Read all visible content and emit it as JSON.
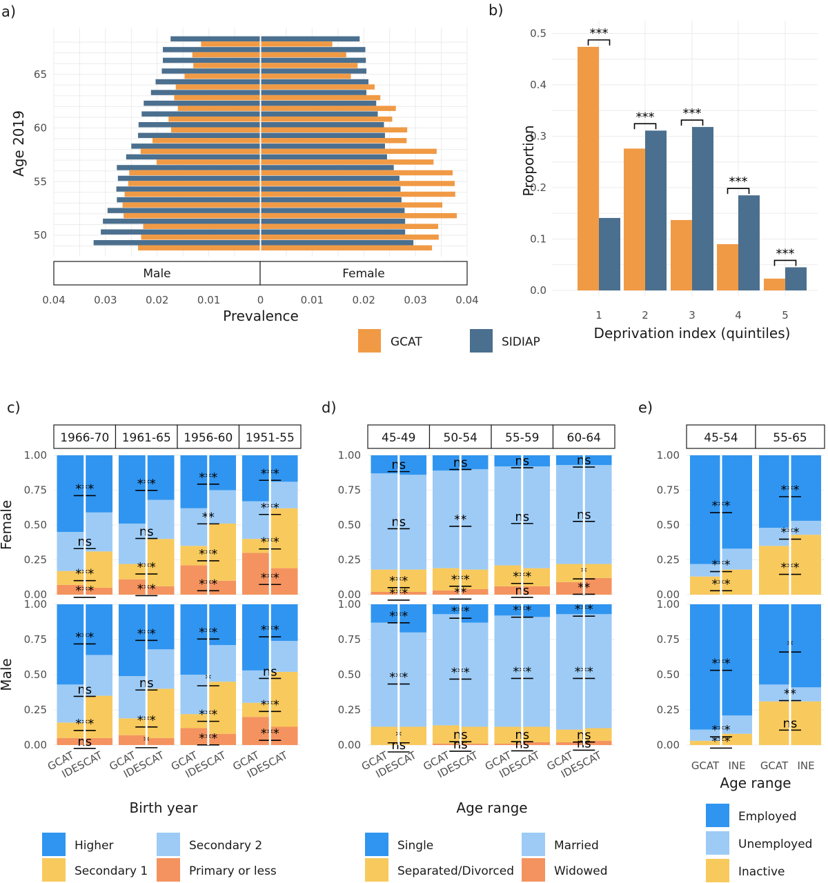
{
  "colors": {
    "gcat": "#F09A45",
    "sidiap": "#4B6F8E",
    "higher": "#3095F0",
    "secondary2": "#9DCBF6",
    "secondary1": "#F8C95C",
    "primary": "#F4935F",
    "employed": "#3095F0",
    "unemployed": "#9DCBF6",
    "inactive": "#F8C95C",
    "single": "#3095F0",
    "married": "#9DCBF6",
    "separated": "#F8C95C",
    "widowed": "#F4935F"
  },
  "panel_labels": [
    "a)",
    "b)",
    "c)",
    "d)",
    "e)"
  ],
  "legend_ab": [
    "GCAT",
    "SIDIAP"
  ],
  "chart_data": [
    {
      "panel": "a)",
      "type": "bar",
      "orientation": "horizontal",
      "xlabel": "Prevalence",
      "ylabel": "Age 2019",
      "xlim": [
        -0.04,
        0.04
      ],
      "x_ticks": [
        "0.04",
        "0.03",
        "0.02",
        "0.01",
        "0",
        "0.01",
        "0.02",
        "0.03",
        "0.04"
      ],
      "y_ticks": [
        "50",
        "55",
        "60",
        "65"
      ],
      "facets": [
        "Male",
        "Female"
      ],
      "ages": [
        49,
        50,
        51,
        52,
        53,
        54,
        55,
        56,
        57,
        58,
        59,
        60,
        61,
        62,
        63,
        64,
        65,
        66,
        67,
        68
      ],
      "series": [
        {
          "name": "GCAT",
          "male": [
            0.0237,
            0.0231,
            0.0227,
            0.0265,
            0.0267,
            0.0263,
            0.0256,
            0.0254,
            0.0201,
            0.0232,
            0.0209,
            0.0173,
            0.0178,
            0.016,
            0.0167,
            0.0164,
            0.0147,
            0.013,
            0.0132,
            0.0115
          ],
          "female": [
            0.0332,
            0.0345,
            0.0344,
            0.038,
            0.0352,
            0.0377,
            0.0376,
            0.0372,
            0.0335,
            0.0341,
            0.0283,
            0.0284,
            0.0255,
            0.0262,
            0.0232,
            0.0221,
            0.0175,
            0.0188,
            0.0166,
            0.0139
          ]
        },
        {
          "name": "SIDIAP",
          "male": [
            0.0323,
            0.0309,
            0.0305,
            0.0296,
            0.0278,
            0.0279,
            0.0276,
            0.0278,
            0.026,
            0.025,
            0.0237,
            0.0236,
            0.023,
            0.0226,
            0.0212,
            0.0203,
            0.0191,
            0.0189,
            0.0189,
            0.0174
          ],
          "female": [
            0.0296,
            0.028,
            0.028,
            0.0279,
            0.0273,
            0.0271,
            0.0269,
            0.0258,
            0.0245,
            0.0241,
            0.0241,
            0.0239,
            0.0227,
            0.0224,
            0.0205,
            0.0209,
            0.0205,
            0.0204,
            0.0203,
            0.0192
          ]
        }
      ]
    },
    {
      "panel": "b)",
      "type": "bar",
      "xlabel": "Deprivation index (quintiles)",
      "ylabel": "Proportion",
      "ylim": [
        0,
        0.5
      ],
      "categories": [
        "1",
        "2",
        "3",
        "4",
        "5"
      ],
      "y_ticks": [
        "0.0",
        "0.1",
        "0.2",
        "0.3",
        "0.4",
        "0.5"
      ],
      "series": [
        {
          "name": "GCAT",
          "values": [
            0.474,
            0.276,
            0.137,
            0.09,
            0.023
          ]
        },
        {
          "name": "SIDIAP",
          "values": [
            0.141,
            0.311,
            0.318,
            0.185,
            0.045
          ]
        }
      ],
      "annotations": [
        "***",
        "***",
        "***",
        "***",
        "***"
      ]
    },
    {
      "panel": "c)",
      "type": "bar",
      "stacked": true,
      "xlabel": "Birth year",
      "ylabel_rows": [
        "Female",
        "Male"
      ],
      "columns": [
        "1966-70",
        "1961-65",
        "1956-60",
        "1951-55"
      ],
      "categories": [
        "GCAT",
        "IDESCAT"
      ],
      "y_ticks": [
        "0.00",
        "0.25",
        "0.50",
        "0.75",
        "1.00"
      ],
      "legend": [
        "Higher",
        "Secondary 2",
        "Secondary 1",
        "Primary or less"
      ],
      "rows": [
        {
          "row": "Female",
          "bars": [
            {
              "GCAT": [
                0.07,
                0.1,
                0.28,
                0.55
              ],
              "IDESCAT": [
                0.05,
                0.26,
                0.28,
                0.41
              ]
            },
            {
              "GCAT": [
                0.11,
                0.11,
                0.29,
                0.49
              ],
              "IDESCAT": [
                0.06,
                0.34,
                0.28,
                0.32
              ]
            },
            {
              "GCAT": [
                0.21,
                0.14,
                0.27,
                0.38
              ],
              "IDESCAT": [
                0.1,
                0.41,
                0.24,
                0.25
              ]
            },
            {
              "GCAT": [
                0.3,
                0.1,
                0.27,
                0.33
              ],
              "IDESCAT": [
                0.19,
                0.43,
                0.19,
                0.19
              ]
            }
          ],
          "sig": [
            [
              "***",
              "***",
              "ns",
              "***"
            ],
            [
              "***",
              "***",
              "ns",
              "***"
            ],
            [
              "***",
              "***",
              "**",
              "***"
            ],
            [
              "***",
              "***",
              "***",
              "***"
            ]
          ]
        },
        {
          "row": "Male",
          "bars": [
            {
              "GCAT": [
                0.05,
                0.11,
                0.27,
                0.57
              ],
              "IDESCAT": [
                0.05,
                0.3,
                0.29,
                0.36
              ]
            },
            {
              "GCAT": [
                0.07,
                0.12,
                0.3,
                0.51
              ],
              "IDESCAT": [
                0.05,
                0.35,
                0.28,
                0.32
              ]
            },
            {
              "GCAT": [
                0.12,
                0.1,
                0.28,
                0.5
              ],
              "IDESCAT": [
                0.08,
                0.37,
                0.26,
                0.29
              ]
            },
            {
              "GCAT": [
                0.2,
                0.1,
                0.23,
                0.47
              ],
              "IDESCAT": [
                0.13,
                0.39,
                0.22,
                0.26
              ]
            }
          ],
          "sig": [
            [
              "ns",
              "***",
              "ns",
              "***"
            ],
            [
              "*",
              "***",
              "ns",
              "***"
            ],
            [
              "***",
              "***",
              "*",
              "***"
            ],
            [
              "***",
              "***",
              "ns",
              "***"
            ]
          ]
        }
      ]
    },
    {
      "panel": "d)",
      "type": "bar",
      "stacked": true,
      "xlabel": "Age range",
      "columns": [
        "45-49",
        "50-54",
        "55-59",
        "60-64"
      ],
      "categories": [
        "GCAT",
        "IDESCAT"
      ],
      "y_ticks": [
        "0.00",
        "0.25",
        "0.50",
        "0.75",
        "1.00"
      ],
      "legend": [
        "Single",
        "Married",
        "Separated/Divorced",
        "Widowed"
      ],
      "rows": [
        {
          "row": "Female",
          "bars": [
            {
              "GCAT": [
                0.02,
                0.16,
                0.69,
                0.13
              ],
              "IDESCAT": [
                0.02,
                0.16,
                0.68,
                0.14
              ]
            },
            {
              "GCAT": [
                0.03,
                0.16,
                0.7,
                0.11
              ],
              "IDESCAT": [
                0.04,
                0.14,
                0.72,
                0.1
              ]
            },
            {
              "GCAT": [
                0.06,
                0.15,
                0.71,
                0.08
              ],
              "IDESCAT": [
                0.06,
                0.13,
                0.73,
                0.08
              ]
            },
            {
              "GCAT": [
                0.09,
                0.13,
                0.71,
                0.07
              ],
              "IDESCAT": [
                0.12,
                0.1,
                0.71,
                0.07
              ]
            }
          ],
          "sig": [
            [
              "***",
              "***",
              "ns",
              "ns"
            ],
            [
              "**",
              "***",
              "**",
              "ns"
            ],
            [
              "ns",
              "***",
              "ns",
              "ns"
            ],
            [
              "**",
              "*",
              "ns",
              "ns"
            ]
          ]
        },
        {
          "row": "Male",
          "bars": [
            {
              "GCAT": [
                0.0,
                0.13,
                0.74,
                0.13
              ],
              "IDESCAT": [
                0.0,
                0.13,
                0.67,
                0.2
              ]
            },
            {
              "GCAT": [
                0.01,
                0.13,
                0.79,
                0.07
              ],
              "IDESCAT": [
                0.01,
                0.12,
                0.74,
                0.13
              ]
            },
            {
              "GCAT": [
                0.01,
                0.12,
                0.79,
                0.08
              ],
              "IDESCAT": [
                0.02,
                0.11,
                0.78,
                0.09
              ]
            },
            {
              "GCAT": [
                0.02,
                0.09,
                0.82,
                0.07
              ],
              "IDESCAT": [
                0.03,
                0.09,
                0.81,
                0.07
              ]
            }
          ],
          "sig": [
            [
              "ns",
              "*",
              "***",
              "***"
            ],
            [
              "ns",
              "ns",
              "***",
              "***"
            ],
            [
              "ns",
              "ns",
              "***",
              "***"
            ],
            [
              "ns",
              "ns",
              "***",
              "***"
            ]
          ]
        }
      ]
    },
    {
      "panel": "e)",
      "type": "bar",
      "stacked": true,
      "xlabel": "Age range",
      "columns": [
        "45-54",
        "55-65"
      ],
      "categories": [
        "GCAT",
        "INE"
      ],
      "y_ticks": [
        "0.00",
        "0.25",
        "0.50",
        "0.75",
        "1.00"
      ],
      "legend": [
        "Employed",
        "Unemployed",
        "Inactive"
      ],
      "rows": [
        {
          "row": "Female",
          "bars": [
            {
              "GCAT": [
                0.13,
                0.09,
                0.78
              ],
              "INE": [
                0.18,
                0.15,
                0.67
              ]
            },
            {
              "GCAT": [
                0.35,
                0.13,
                0.52
              ],
              "INE": [
                0.43,
                0.1,
                0.47
              ]
            }
          ],
          "sig": [
            [
              "***",
              "***",
              "***"
            ],
            [
              "***",
              "***",
              "***"
            ]
          ]
        },
        {
          "row": "Male",
          "bars": [
            {
              "GCAT": [
                0.03,
                0.08,
                0.89
              ],
              "INE": [
                0.08,
                0.13,
                0.79
              ]
            },
            {
              "GCAT": [
                0.31,
                0.12,
                0.57
              ],
              "INE": [
                0.31,
                0.1,
                0.59
              ]
            }
          ],
          "sig": [
            [
              "***",
              "***",
              "***"
            ],
            [
              "ns",
              "**",
              "*"
            ]
          ]
        }
      ]
    }
  ]
}
